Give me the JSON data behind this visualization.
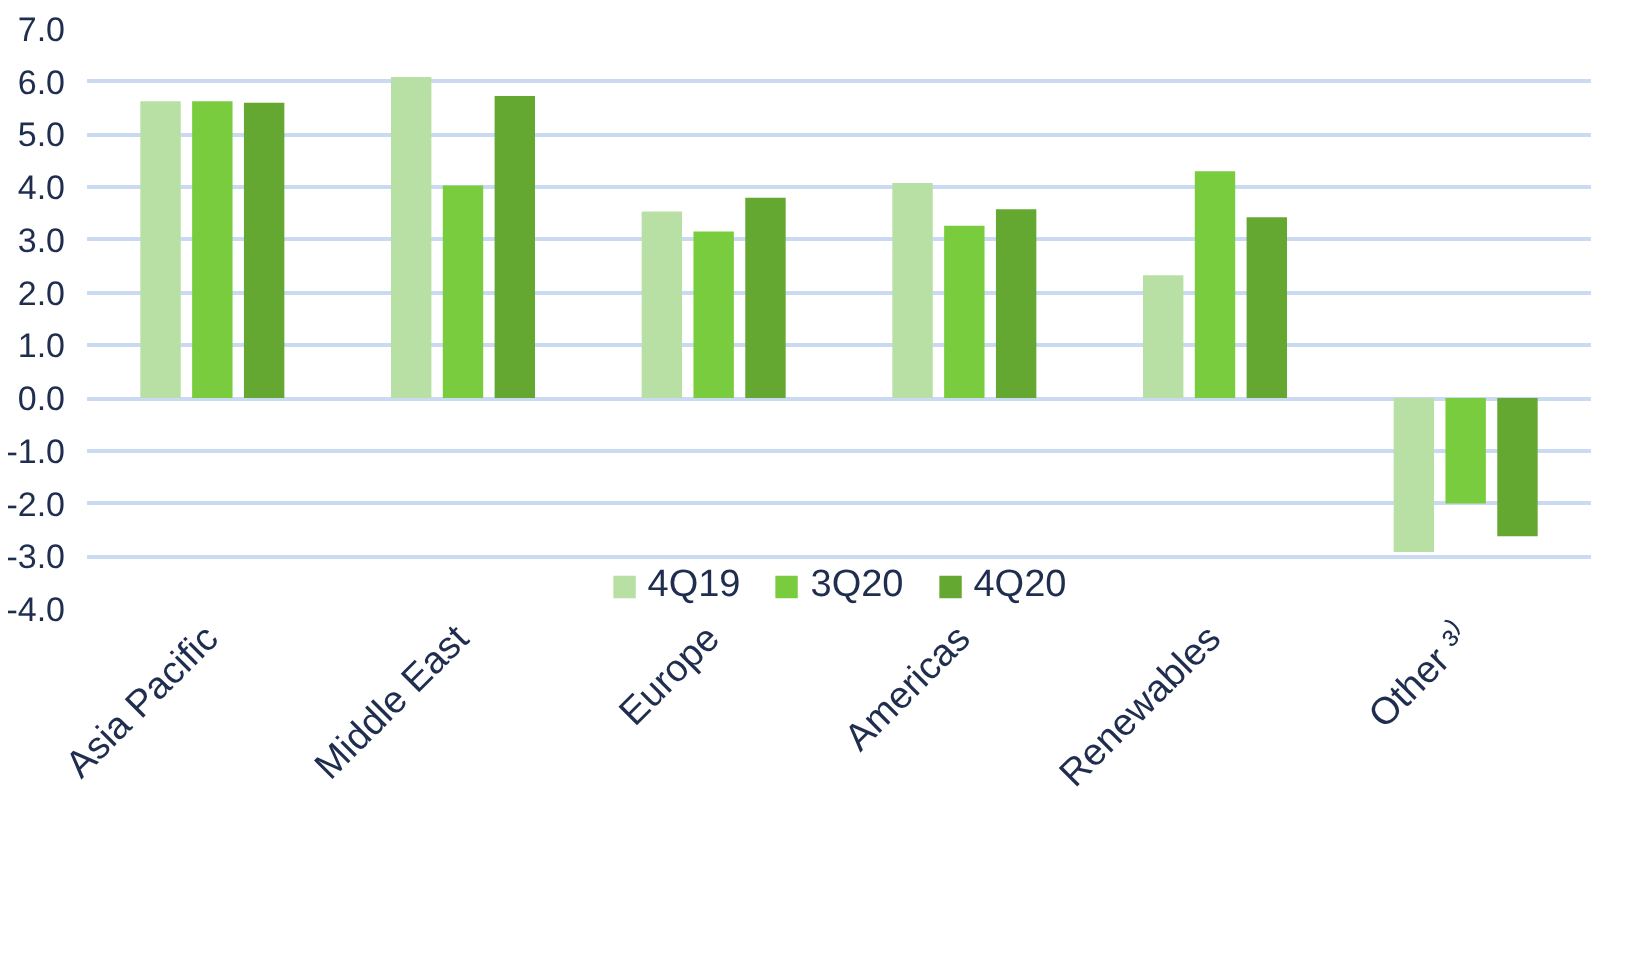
{
  "chart_data": {
    "type": "bar",
    "categories": [
      "Asia Pacific",
      "Middle East",
      "Europe",
      "Americas",
      "Renewables",
      "Other ³⁾"
    ],
    "series": [
      {
        "name": "4Q19",
        "color": "#b8e0a4",
        "values": [
          5.63,
          6.09,
          3.54,
          4.08,
          2.33,
          -2.92
        ]
      },
      {
        "name": "3Q20",
        "color": "#7acc3f",
        "values": [
          5.63,
          4.03,
          3.16,
          3.27,
          4.3,
          -2.0
        ]
      },
      {
        "name": "4Q20",
        "color": "#64a832",
        "values": [
          5.6,
          5.73,
          3.8,
          3.58,
          3.43,
          -2.62
        ]
      }
    ],
    "ylim": [
      -4,
      7
    ],
    "yticks": [
      {
        "value": -4,
        "label": "-4.0"
      },
      {
        "value": -3,
        "label": "-3.0"
      },
      {
        "value": -2,
        "label": "-2.0"
      },
      {
        "value": -1,
        "label": "-1.0"
      },
      {
        "value": 0,
        "label": "0.0"
      },
      {
        "value": 1,
        "label": "1.0"
      },
      {
        "value": 2,
        "label": "2.0"
      },
      {
        "value": 3,
        "label": "3.0"
      },
      {
        "value": 4,
        "label": "4.0"
      },
      {
        "value": 5,
        "label": "5.0"
      },
      {
        "value": 6,
        "label": "6.0"
      },
      {
        "value": 7,
        "label": "7.0"
      }
    ],
    "grid": "y",
    "legend": "bottom"
  }
}
